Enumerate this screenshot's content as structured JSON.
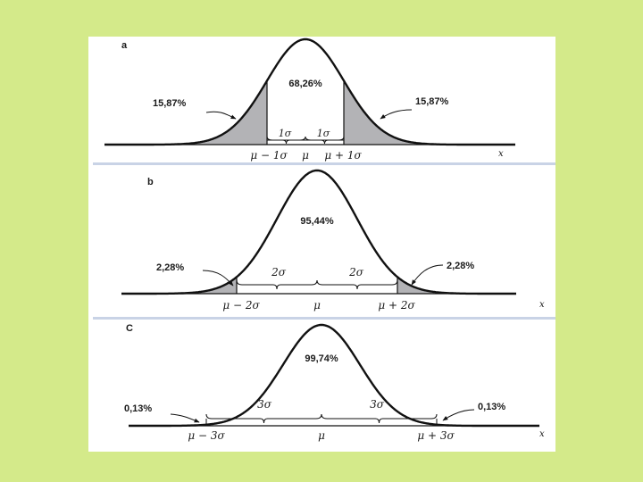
{
  "colors": {
    "background": "#d4ea8a",
    "panel": "#ffffff",
    "curve": "#111111",
    "tail_fill": "#b3b3b6",
    "divider": "#c9d3e6"
  },
  "x_variable": "x",
  "panels": [
    {
      "letter": "a",
      "center_label": "68,26%",
      "left_tail_label": "15,87%",
      "right_tail_label": "15,87%",
      "left_brace_label": "1σ",
      "right_brace_label": "1σ",
      "axis_left_label": "μ − 1σ",
      "axis_mid_label": "μ",
      "axis_right_label": "μ + 1σ"
    },
    {
      "letter": "b",
      "center_label": "95,44%",
      "left_tail_label": "2,28%",
      "right_tail_label": "2,28%",
      "left_brace_label": "2σ",
      "right_brace_label": "2σ",
      "axis_left_label": "μ − 2σ",
      "axis_mid_label": "μ",
      "axis_right_label": "μ + 2σ"
    },
    {
      "letter": "C",
      "center_label": "99,74%",
      "left_tail_label": "0,13%",
      "right_tail_label": "0,13%",
      "left_brace_label": "3σ",
      "right_brace_label": "3σ",
      "axis_left_label": "μ − 3σ",
      "axis_mid_label": "μ",
      "axis_right_label": "μ + 3σ"
    }
  ]
}
